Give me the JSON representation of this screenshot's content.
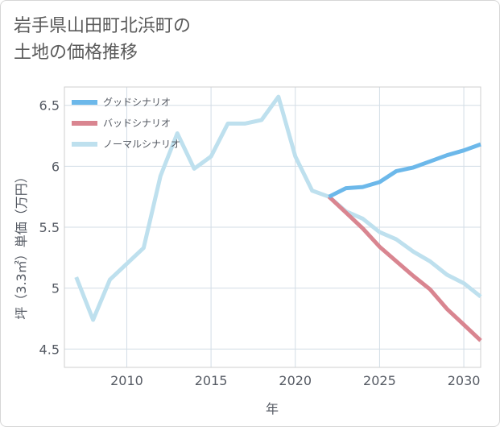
{
  "title": "岩手県山田町北浜町の\n土地の価格推移",
  "chart_data": {
    "type": "line",
    "title": "岩手県山田町北浜町の土地の価格推移",
    "xlabel": "年",
    "ylabel": "坪（3.3㎡）単価（万円）",
    "xlim": [
      2006.3,
      2031
    ],
    "ylim": [
      4.35,
      6.65
    ],
    "xticks": [
      2010,
      2015,
      2020,
      2025,
      2030
    ],
    "yticks": [
      4.5,
      5,
      5.5,
      6,
      6.5
    ],
    "ytick_labels": [
      "4.5",
      "5",
      "5.5",
      "6",
      "6.5"
    ],
    "grid": true,
    "legend_position": "top-left",
    "series": [
      {
        "name": "グッドシナリオ",
        "color": "#6cb8ea",
        "x": [
          2022,
          2023,
          2024,
          2025,
          2026,
          2027,
          2028,
          2029,
          2030,
          2031
        ],
        "values": [
          5.75,
          5.82,
          5.83,
          5.87,
          5.96,
          5.99,
          6.04,
          6.09,
          6.13,
          6.18
        ]
      },
      {
        "name": "バッドシナリオ",
        "color": "#d98590",
        "x": [
          2022,
          2023,
          2024,
          2025,
          2026,
          2027,
          2028,
          2029,
          2030,
          2031
        ],
        "values": [
          5.75,
          5.62,
          5.49,
          5.34,
          5.22,
          5.1,
          4.99,
          4.83,
          4.7,
          4.57
        ]
      },
      {
        "name": "ノーマルシナリオ",
        "color": "#bee0ee",
        "x": [
          2007,
          2008,
          2009,
          2010,
          2011,
          2012,
          2013,
          2014,
          2015,
          2016,
          2017,
          2018,
          2019,
          2020,
          2021,
          2022,
          2023,
          2024,
          2025,
          2026,
          2027,
          2028,
          2029,
          2030,
          2031
        ],
        "values": [
          5.09,
          4.74,
          5.07,
          5.2,
          5.33,
          5.92,
          6.27,
          5.98,
          6.08,
          6.35,
          6.35,
          6.38,
          6.57,
          6.08,
          5.8,
          5.75,
          5.63,
          5.57,
          5.46,
          5.4,
          5.3,
          5.22,
          5.11,
          5.04,
          4.93
        ]
      }
    ]
  }
}
